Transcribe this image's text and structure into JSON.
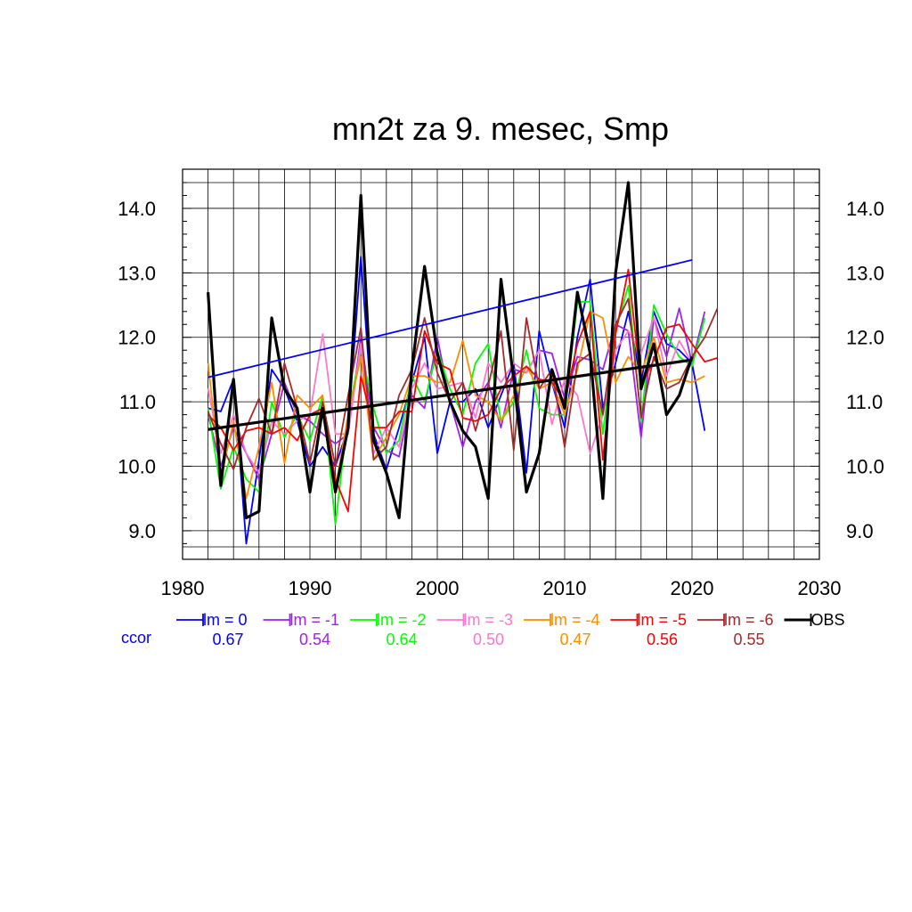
{
  "chart_data": {
    "type": "line",
    "title": "mn2t za 9. mesec, Smp",
    "xlabel": "",
    "ylabel": "",
    "xlim": [
      1980,
      2030
    ],
    "ylim": [
      8.75,
      14.4
    ],
    "x_ticks": [
      1980,
      1990,
      2000,
      2010,
      2020,
      2030
    ],
    "y_ticks": [
      9.0,
      10.0,
      11.0,
      12.0,
      13.0,
      14.0
    ],
    "y_tick_labels": [
      "9.0",
      "10.0",
      "11.0",
      "12.0",
      "13.0",
      "14.0"
    ],
    "grid": true,
    "legend_position": "bottom",
    "ccor_label": "ccor",
    "series": [
      {
        "name": "lm = 0",
        "color": "#0000ff",
        "ccor": "0.67",
        "start_year": 1982,
        "values": [
          10.9,
          10.85,
          11.35,
          8.8,
          10.1,
          11.5,
          11.2,
          10.7,
          10.0,
          10.3,
          10.0,
          10.6,
          13.25,
          10.5,
          9.95,
          10.6,
          11.3,
          12.0,
          10.2,
          11.0,
          11.0,
          11.2,
          10.6,
          11.1,
          11.6,
          9.9,
          12.1,
          11.3,
          10.6,
          12.0,
          12.9,
          10.9,
          11.6,
          12.4,
          11.3,
          12.4,
          11.9,
          11.8,
          11.6,
          10.55
        ],
        "trend": [
          11.38,
          13.2
        ]
      },
      {
        "name": "lm = -1",
        "color": "#a020f0",
        "ccor": "0.54",
        "start_year": 1982,
        "values": [
          10.8,
          10.0,
          10.6,
          10.2,
          9.8,
          10.5,
          11.3,
          10.8,
          10.7,
          10.5,
          10.35,
          10.5,
          12.0,
          10.6,
          10.25,
          10.15,
          11.1,
          10.9,
          12.0,
          11.0,
          10.3,
          11.0,
          11.3,
          10.6,
          11.5,
          11.45,
          11.8,
          11.75,
          11.05,
          11.7,
          11.65,
          11.5,
          12.2,
          12.1,
          10.45,
          12.3,
          11.7,
          12.45,
          11.6,
          12.4
        ]
      },
      {
        "name": "lm = -2",
        "color": "#00ff00",
        "ccor": "0.64",
        "start_year": 1982,
        "values": [
          10.9,
          9.65,
          10.3,
          9.8,
          9.6,
          11.0,
          10.45,
          10.8,
          10.4,
          11.1,
          9.1,
          10.8,
          11.8,
          10.9,
          10.2,
          10.4,
          11.4,
          11.0,
          11.8,
          11.2,
          10.8,
          11.6,
          11.9,
          10.7,
          11.0,
          11.8,
          10.9,
          10.8,
          10.8,
          12.55,
          12.55,
          10.5,
          12.1,
          12.8,
          10.7,
          12.5,
          12.05,
          11.7,
          11.55,
          12.3
        ]
      },
      {
        "name": "lm = -3",
        "color": "#ff77cc",
        "ccor": "0.50",
        "start_year": 1982,
        "values": [
          11.2,
          10.2,
          10.8,
          10.2,
          9.9,
          10.7,
          10.5,
          10.7,
          10.8,
          12.05,
          10.5,
          10.5,
          11.9,
          10.2,
          10.6,
          10.3,
          11.2,
          11.6,
          11.2,
          11.25,
          11.3,
          10.75,
          11.6,
          11.3,
          11.6,
          11.45,
          11.8,
          10.65,
          11.35,
          11.1,
          10.2,
          10.8,
          11.8,
          12.1,
          11.75,
          12.3,
          11.4,
          11.95,
          11.6
        ]
      },
      {
        "name": "lm = -4",
        "color": "#ff8c00",
        "ccor": "0.47",
        "start_year": 1982,
        "values": [
          11.6,
          9.8,
          10.7,
          9.5,
          10.3,
          11.3,
          10.05,
          11.1,
          10.9,
          11.1,
          9.65,
          10.8,
          11.7,
          10.1,
          10.45,
          10.8,
          11.4,
          11.4,
          11.3,
          11.3,
          11.95,
          11.1,
          11.0,
          10.7,
          11.1,
          11.55,
          11.2,
          11.3,
          10.8,
          11.5,
          12.4,
          12.3,
          11.3,
          11.7,
          11.45,
          12.0,
          11.3,
          11.35,
          11.3,
          11.4
        ]
      },
      {
        "name": "lm = -5",
        "color": "#ff0000",
        "ccor": "0.56",
        "start_year": 1982,
        "values": [
          10.8,
          10.6,
          10.25,
          10.55,
          10.6,
          10.5,
          10.6,
          10.4,
          10.8,
          10.9,
          9.8,
          9.3,
          11.4,
          10.6,
          10.6,
          10.85,
          10.85,
          12.1,
          11.6,
          11.5,
          10.75,
          10.7,
          10.8,
          11.2,
          11.4,
          11.55,
          11.35,
          11.3,
          11.0,
          11.9,
          12.4,
          10.1,
          12.05,
          13.05,
          11.25,
          11.65,
          12.15,
          12.2,
          11.9,
          11.62,
          11.68
        ]
      },
      {
        "name": "lm = -6",
        "color": "#a52a2a",
        "ccor": "0.55",
        "start_year": 1982,
        "values": [
          10.85,
          10.35,
          9.95,
          10.6,
          11.05,
          10.5,
          11.6,
          10.9,
          10.05,
          11.0,
          10.0,
          11.1,
          12.15,
          10.1,
          10.3,
          11.1,
          11.5,
          12.3,
          11.45,
          11.0,
          11.3,
          10.55,
          11.25,
          12.1,
          10.25,
          12.3,
          11.2,
          11.5,
          10.3,
          11.6,
          11.75,
          10.8,
          12.2,
          12.6,
          10.75,
          11.7,
          11.2,
          11.3,
          11.7,
          12.0,
          12.45
        ]
      },
      {
        "name": "OBS",
        "color": "#000000",
        "ccor": "",
        "start_year": 1982,
        "values": [
          12.7,
          9.7,
          11.35,
          9.2,
          9.3,
          12.3,
          11.2,
          10.9,
          9.6,
          10.9,
          9.6,
          10.6,
          14.2,
          10.4,
          9.9,
          9.2,
          11.5,
          13.1,
          11.75,
          11.0,
          10.55,
          10.3,
          9.5,
          12.9,
          11.35,
          9.6,
          10.2,
          11.5,
          10.9,
          12.7,
          11.75,
          9.5,
          13.0,
          14.4,
          11.2,
          11.9,
          10.8,
          11.1,
          11.7
        ],
        "trend": [
          10.57,
          11.65
        ]
      }
    ],
    "trend_range": [
      1982,
      2020
    ]
  }
}
